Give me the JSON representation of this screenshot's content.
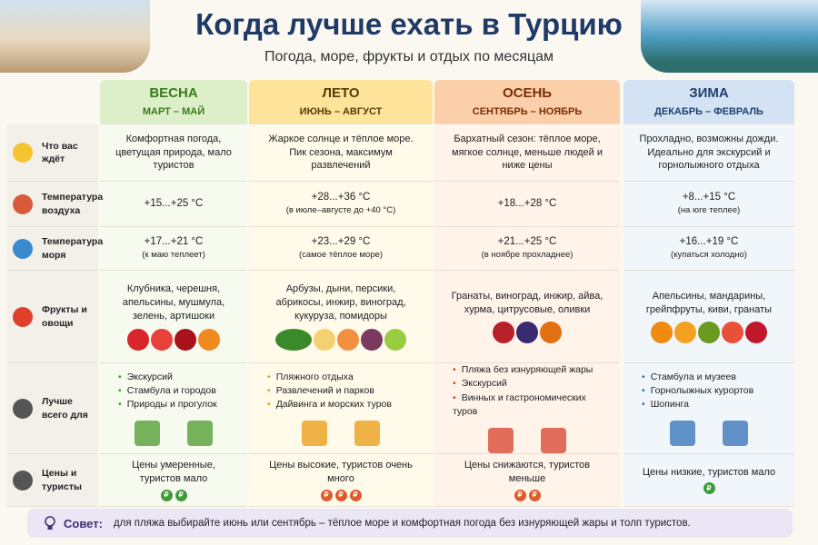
{
  "header": {
    "title": "Когда лучше ехать в Турцию",
    "subtitle": "Погода, море, фрукты и отдых по месяцам"
  },
  "seasons": [
    {
      "name": "ВЕСНА",
      "months": "МАРТ – МАЙ"
    },
    {
      "name": "ЛЕТО",
      "months": "ИЮНЬ – АВГУСТ"
    },
    {
      "name": "ОСЕНЬ",
      "months": "СЕНТЯБРЬ – НОЯБРЬ"
    },
    {
      "name": "ЗИМА",
      "months": "ДЕКАБРЬ – ФЕВРАЛЬ"
    }
  ],
  "rows": [
    {
      "label": "Что вас ждёт",
      "cells": [
        {
          "text": "Комфортная погода, цветущая природа, мало туристов"
        },
        {
          "text": "Жаркое солнце и тёплое море. Пик сезона, максимум развлечений"
        },
        {
          "text": "Бархатный сезон: тёплое море, мягкое солнце, меньше людей и ниже цены"
        },
        {
          "text": "Прохладно, возможны дожди. Идеально для экскурсий и горнолыжного отдыха"
        }
      ]
    },
    {
      "label": "Температура воздуха",
      "cells": [
        {
          "text": "+15...+25 °C"
        },
        {
          "text": "+28...+36 °C",
          "note": "(в июле–августе до +40 °C)"
        },
        {
          "text": "+18...+28 °C"
        },
        {
          "text": "+8...+15 °C",
          "note": "(на юге теплее)"
        }
      ]
    },
    {
      "label": "Температура моря",
      "cells": [
        {
          "text": "+17...+21 °C",
          "note": "(к маю теплеет)"
        },
        {
          "text": "+23...+29 °C",
          "note": "(самое тёплое море)"
        },
        {
          "text": "+21...+25 °C",
          "note": "(в ноябре прохладнее)"
        },
        {
          "text": "+16...+19 °C",
          "note": "(купаться холодно)"
        }
      ]
    },
    {
      "label": "Фрукты и овощи",
      "cells": [
        {
          "text": "Клубника, черешня, апельсины, мушмула, зелень, артишоки"
        },
        {
          "text": "Арбузы, дыни, персики, абрикосы, инжир, виноград, кукуруза, помидоры"
        },
        {
          "text": "Гранаты, виноград, инжир, айва, хурма, цитрусовые, оливки"
        },
        {
          "text": "Апельсины, мандарины, грейпфруты, киви, гранаты"
        }
      ]
    },
    {
      "label": "Лучше всего для",
      "cells": [
        {
          "items": [
            "Экскурсий",
            "Стамбула и городов",
            "Природы и прогулок"
          ]
        },
        {
          "items": [
            "Пляжного отдыха",
            "Развлечений и парков",
            "Дайвинга и морских туров"
          ]
        },
        {
          "items": [
            "Пляжа без изнуряющей жары",
            "Экскурсий",
            "Винных и гастрономических туров"
          ]
        },
        {
          "items": [
            "Стамбула и музеев",
            "Горнолыжных курортов",
            "Шопинга"
          ]
        }
      ]
    },
    {
      "label": "Цены и туристы",
      "cells": [
        {
          "text": "Цены умеренные, туристов мало",
          "coins": [
            "₽",
            "₽"
          ]
        },
        {
          "text": "Цены высокие, туристов очень много",
          "coins": [
            "₽",
            "₽",
            "₽"
          ]
        },
        {
          "text": "Цены снижаются, туристов меньше",
          "coins": [
            "₽",
            "₽"
          ]
        },
        {
          "text": "Цены низкие, туристов мало",
          "coins": [
            "₽"
          ]
        }
      ]
    }
  ],
  "tip": {
    "label": "Совет:",
    "text": "для пляжа выбирайте июнь или сентябрь – тёплое море и комфортная погода без изнуряющей жары и толп туристов."
  }
}
